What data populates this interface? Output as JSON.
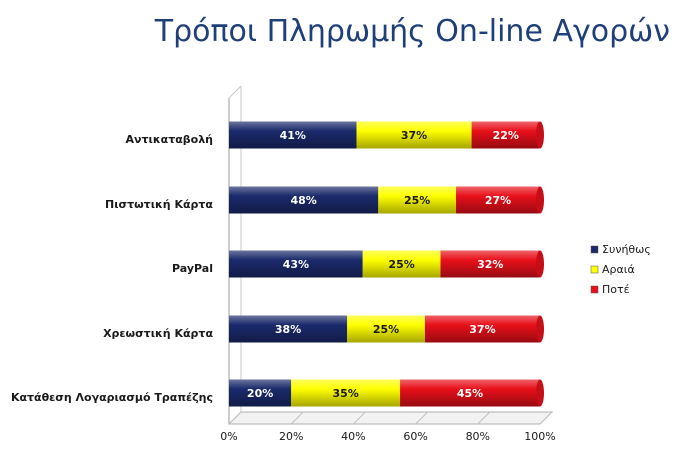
{
  "chart_data": {
    "type": "bar",
    "orientation": "horizontal",
    "stacked": "percent",
    "title": "Τρόποι Πληρωμής On-line Αγορών",
    "categories": [
      "Αντικαταβολή",
      "Πιστωτική Κάρτα",
      "PayPal",
      "Χρεωστική Κάρτα",
      "Κατάθεση Λογαριασμό Τραπέζης"
    ],
    "series": [
      {
        "name": "Συνήθως",
        "color": "#1b2a6b",
        "label_color": "#ffffff",
        "values": [
          41,
          48,
          43,
          38,
          20
        ]
      },
      {
        "name": "Αραιά",
        "color": "#ffff00",
        "label_color": "#1a1a1a",
        "values": [
          37,
          25,
          25,
          25,
          35
        ]
      },
      {
        "name": "Ποτέ",
        "color": "#e8101a",
        "label_color": "#ffffff",
        "values": [
          22,
          27,
          32,
          37,
          45
        ]
      }
    ],
    "data_labels": [
      [
        "41%",
        "37%",
        "22%"
      ],
      [
        "48%",
        "25%",
        "27%"
      ],
      [
        "43%",
        "25%",
        "32%"
      ],
      [
        "38%",
        "25%",
        "37%"
      ],
      [
        "20%",
        "35%",
        "45%"
      ]
    ],
    "x_ticks": [
      "0%",
      "20%",
      "40%",
      "60%",
      "80%",
      "100%"
    ],
    "xlim": [
      0,
      100
    ],
    "grid": false,
    "legend_position": "right"
  }
}
